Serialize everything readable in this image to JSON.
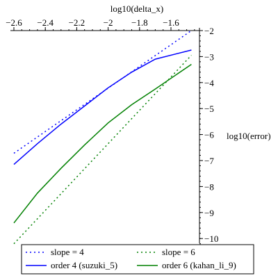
{
  "chart_data": {
    "type": "line",
    "xlabel": "log10(delta_x)",
    "ylabel": "log10(error)",
    "xlim": [
      -2.6,
      -1.45
    ],
    "ylim": [
      -10.2,
      -2.0
    ],
    "x_ticks": [
      -2.6,
      -2.4,
      -2.2,
      -2,
      -1.8,
      -1.6
    ],
    "x_tick_labels": [
      "−2.6",
      "−2.4",
      "−2.2",
      "−2",
      "−1.8",
      "−1.6"
    ],
    "y_ticks": [
      -2,
      -3,
      -4,
      -5,
      -6,
      -7,
      -8,
      -9,
      -10
    ],
    "y_tick_labels": [
      "−2",
      "−3",
      "−4",
      "−5",
      "−6",
      "−7",
      "−8",
      "−9",
      "−10"
    ],
    "grid": false,
    "x_axis_position": "top",
    "y_axis_position": "right",
    "legend_position": "bottom",
    "series": [
      {
        "name": "slope = 4",
        "color": "#0000ff",
        "style": "dotted",
        "points": [
          [
            -2.6,
            -6.72
          ],
          [
            -1.47,
            -2.0
          ]
        ]
      },
      {
        "name": "slope = 6",
        "color": "#008000",
        "style": "dotted",
        "points": [
          [
            -2.6,
            -10.2
          ],
          [
            -1.47,
            -2.95
          ]
        ]
      },
      {
        "name": "order 4 (suzuki_5)",
        "color": "#0000ff",
        "style": "solid",
        "points": [
          [
            -2.6,
            -7.15
          ],
          [
            -2.45,
            -6.35
          ],
          [
            -2.3,
            -5.6
          ],
          [
            -2.15,
            -4.9
          ],
          [
            -2.0,
            -4.2
          ],
          [
            -1.85,
            -3.6
          ],
          [
            -1.7,
            -3.1
          ],
          [
            -1.47,
            -2.75
          ]
        ]
      },
      {
        "name": "order 6 (kahan_li_9)",
        "color": "#008000",
        "style": "solid",
        "points": [
          [
            -2.6,
            -9.4
          ],
          [
            -2.45,
            -8.25
          ],
          [
            -2.3,
            -7.3
          ],
          [
            -2.15,
            -6.4
          ],
          [
            -2.0,
            -5.55
          ],
          [
            -1.85,
            -4.85
          ],
          [
            -1.7,
            -4.25
          ],
          [
            -1.47,
            -3.3
          ]
        ]
      }
    ]
  }
}
